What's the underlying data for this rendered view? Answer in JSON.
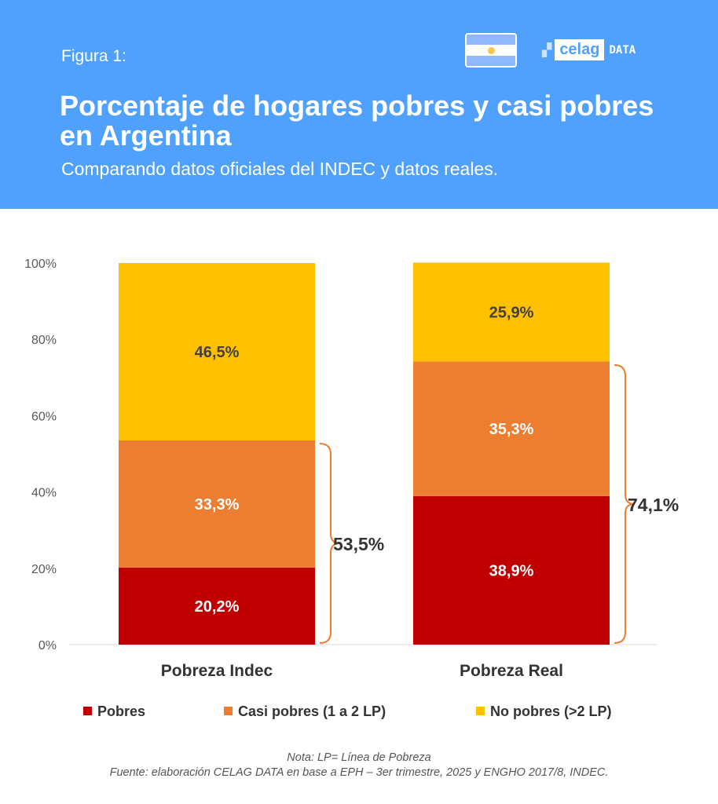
{
  "header": {
    "figure_label": "Figura 1:",
    "title": "Porcentaje de hogares pobres y casi pobres en Argentina",
    "subtitle": "Comparando datos oficiales del INDEC y datos reales.",
    "logo_text": "celag",
    "logo_suffix": "DATA"
  },
  "chart_data": {
    "type": "bar",
    "stacked": true,
    "categories": [
      "Pobreza Indec",
      "Pobreza Real"
    ],
    "series": [
      {
        "name": "Pobres",
        "values": [
          20.2,
          38.9
        ],
        "labels": [
          "20,2%",
          "38,9%"
        ],
        "color": "#c00000"
      },
      {
        "name": "Casi pobres (1 a 2 LP)",
        "values": [
          33.3,
          35.3
        ],
        "labels": [
          "33,3%",
          "35,3%"
        ],
        "color": "#ed7d31"
      },
      {
        "name": "No pobres (>2 LP)",
        "values": [
          46.5,
          25.9
        ],
        "labels": [
          "46,5%",
          "25,9%"
        ],
        "color": "#ffc000"
      }
    ],
    "totals": [
      {
        "value": 53.5,
        "label": "53,5%"
      },
      {
        "value": 74.1,
        "label": "74,1%"
      }
    ],
    "yticks": [
      "0%",
      "20%",
      "40%",
      "60%",
      "80%",
      "100%"
    ],
    "ylim": [
      0,
      100
    ],
    "legend": "bottom"
  },
  "footer": {
    "note": "Nota: LP= Línea de Pobreza",
    "source": "Fuente: elaboración CELAG DATA en base a EPH – 3er trimestre, 2025 y ENGHO 2017/8, INDEC."
  }
}
